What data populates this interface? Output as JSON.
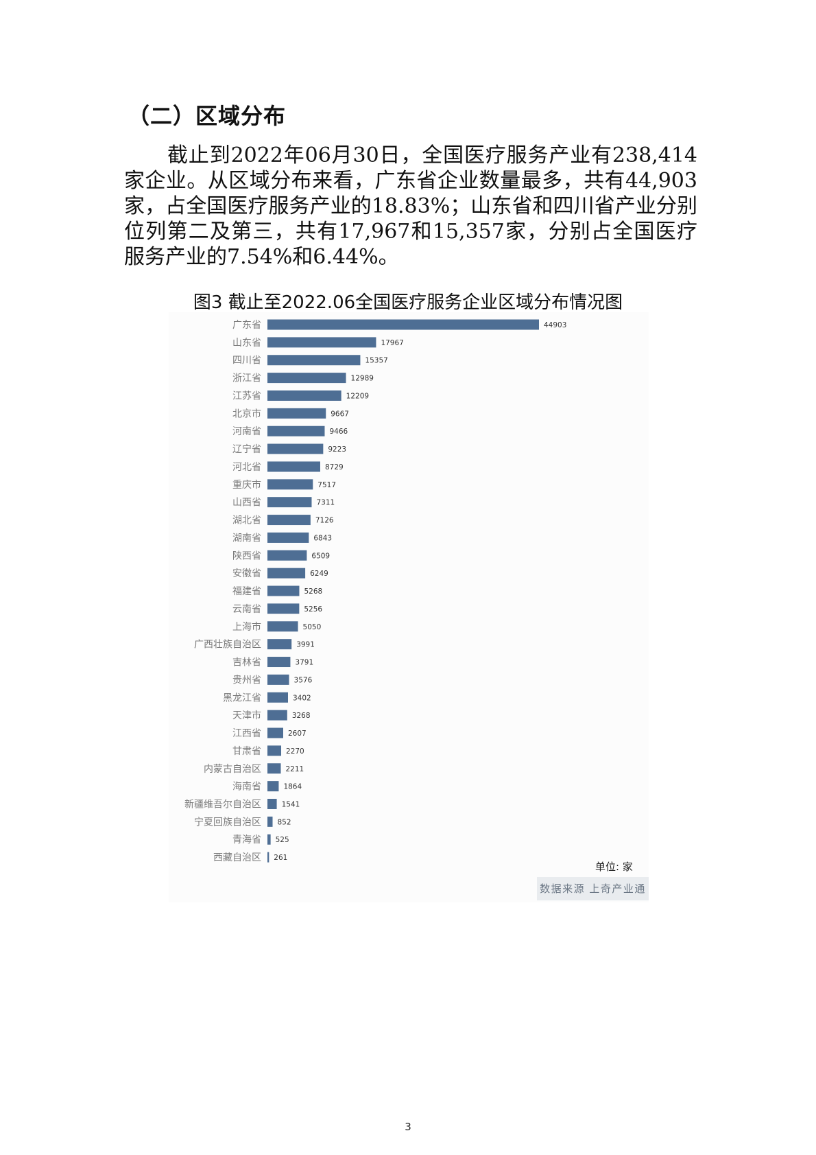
{
  "section": {
    "heading": "（二）区域分布",
    "paragraph": "截止到2022年06月30日，全国医疗服务产业有238,414家企业。从区域分布来看，广东省企业数量最多，共有44,903家，占全国医疗服务产业的18.83%；山东省和四川省产业分别位列第二及第三，共有17,967和15,357家，分别占全国医疗服务产业的7.54%和6.44%。"
  },
  "figure": {
    "caption": "图3 截止至2022.06全国医疗服务企业区域分布情况图",
    "unit_note": "单位: 家",
    "source_note": "数据来源 上奇产业通"
  },
  "chart_data": {
    "type": "bar",
    "orientation": "horizontal",
    "categories": [
      "广东省",
      "山东省",
      "四川省",
      "浙江省",
      "江苏省",
      "北京市",
      "河南省",
      "辽宁省",
      "河北省",
      "重庆市",
      "山西省",
      "湖北省",
      "湖南省",
      "陕西省",
      "安徽省",
      "福建省",
      "云南省",
      "上海市",
      "广西壮族自治区",
      "吉林省",
      "贵州省",
      "黑龙江省",
      "天津市",
      "江西省",
      "甘肃省",
      "内蒙古自治区",
      "海南省",
      "新疆维吾尔自治区",
      "宁夏回族自治区",
      "青海省",
      "西藏自治区"
    ],
    "values": [
      44903,
      17967,
      15357,
      12989,
      12209,
      9667,
      9466,
      9223,
      8729,
      7517,
      7311,
      7126,
      6843,
      6509,
      6249,
      5268,
      5256,
      5050,
      3991,
      3791,
      3576,
      3402,
      3268,
      2607,
      2270,
      2211,
      1864,
      1541,
      852,
      525,
      261
    ],
    "bar_color": "#4e6e94",
    "category_label_color": "#7a7a7a",
    "grid": false
  },
  "page": {
    "number": "3"
  }
}
